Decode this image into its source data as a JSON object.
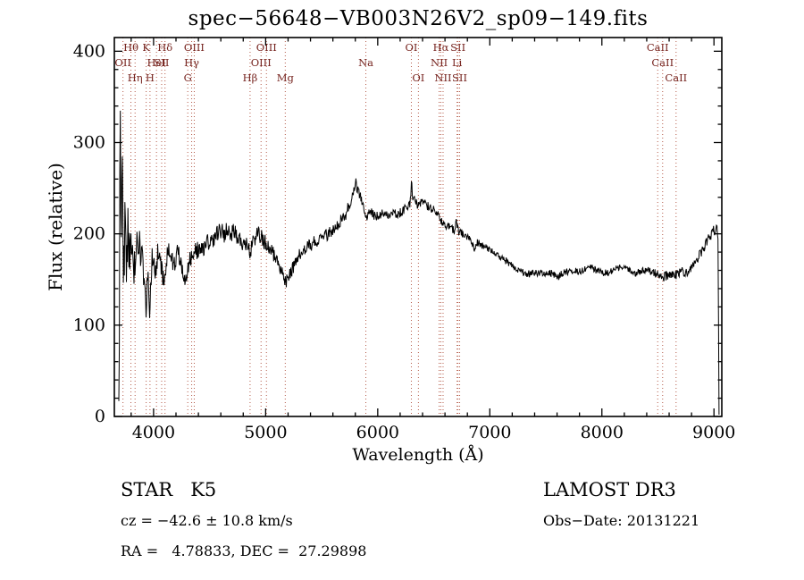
{
  "chart_data": {
    "type": "line",
    "title": "spec−56648−VB003N26V2_sp09−149.fits",
    "xlabel": "Wavelength (Å)",
    "ylabel": "Flux (relative)",
    "xlim": [
      3650,
      9070
    ],
    "ylim": [
      0,
      415
    ],
    "x_ticks": [
      4000,
      5000,
      6000,
      7000,
      8000,
      9000
    ],
    "y_ticks": [
      0,
      100,
      200,
      300,
      400
    ],
    "x_minor_step": 200,
    "y_minor_step": 20,
    "grid": false,
    "legend": "none",
    "line_color": "#000000",
    "marker_line_color": "#b45a48",
    "marker_label_color": "#76241f",
    "spectral_lines": [
      {
        "label": "OII",
        "wavelength": 3727,
        "row": 2
      },
      {
        "label": "Hθ",
        "wavelength": 3798,
        "row": 1
      },
      {
        "label": "Hη",
        "wavelength": 3835,
        "row": 3
      },
      {
        "label": "K",
        "wavelength": 3934,
        "row": 1
      },
      {
        "label": "H",
        "wavelength": 3968,
        "row": 3
      },
      {
        "label": "HeI",
        "wavelength": 4026,
        "row": 2
      },
      {
        "label": "SII",
        "wavelength": 4072,
        "row": 2
      },
      {
        "label": "Hδ",
        "wavelength": 4102,
        "row": 1
      },
      {
        "label": "G",
        "wavelength": 4305,
        "row": 3
      },
      {
        "label": "Hγ",
        "wavelength": 4340,
        "row": 2
      },
      {
        "label": "OIII",
        "wavelength": 4363,
        "row": 1
      },
      {
        "label": "Hβ",
        "wavelength": 4861,
        "row": 3
      },
      {
        "label": "OIII",
        "wavelength": 4959,
        "row": 2
      },
      {
        "label": "OIII",
        "wavelength": 5007,
        "row": 1
      },
      {
        "label": "Mg",
        "wavelength": 5175,
        "row": 3
      },
      {
        "label": "Na",
        "wavelength": 5894,
        "row": 2
      },
      {
        "label": "OI",
        "wavelength": 6300,
        "row": 1
      },
      {
        "label": "OI",
        "wavelength": 6363,
        "row": 3
      },
      {
        "label": "NII",
        "wavelength": 6548,
        "row": 2
      },
      {
        "label": "Hα",
        "wavelength": 6563,
        "row": 1
      },
      {
        "label": "NII",
        "wavelength": 6583,
        "row": 3
      },
      {
        "label": "Li",
        "wavelength": 6708,
        "row": 2
      },
      {
        "label": "SII",
        "wavelength": 6716,
        "row": 1
      },
      {
        "label": "SII",
        "wavelength": 6731,
        "row": 3
      },
      {
        "label": "CaII",
        "wavelength": 8498,
        "row": 1
      },
      {
        "label": "CaII",
        "wavelength": 8542,
        "row": 2
      },
      {
        "label": "CaII",
        "wavelength": 8662,
        "row": 3
      }
    ],
    "series": [
      {
        "name": "flux",
        "noise_seed": 20131221,
        "sample_step": 4.5,
        "anchors": [
          [
            3690,
            15,
            5
          ],
          [
            3696,
            120,
            20
          ],
          [
            3702,
            395,
            10
          ],
          [
            3708,
            210,
            40
          ],
          [
            3715,
            240,
            40
          ],
          [
            3722,
            300,
            30
          ],
          [
            3728,
            180,
            40
          ],
          [
            3736,
            150,
            40
          ],
          [
            3744,
            240,
            35
          ],
          [
            3752,
            200,
            35
          ],
          [
            3760,
            170,
            35
          ],
          [
            3770,
            215,
            30
          ],
          [
            3780,
            185,
            30
          ],
          [
            3790,
            160,
            30
          ],
          [
            3800,
            200,
            28
          ],
          [
            3810,
            175,
            28
          ],
          [
            3820,
            150,
            25
          ],
          [
            3830,
            185,
            25
          ],
          [
            3840,
            160,
            25
          ],
          [
            3850,
            190,
            22
          ],
          [
            3862,
            170,
            22
          ],
          [
            3874,
            200,
            20
          ],
          [
            3886,
            155,
            22
          ],
          [
            3898,
            180,
            20
          ],
          [
            3910,
            160,
            18
          ],
          [
            3922,
            135,
            18
          ],
          [
            3934,
            112,
            12
          ],
          [
            3946,
            160,
            18
          ],
          [
            3958,
            130,
            15
          ],
          [
            3968,
            105,
            12
          ],
          [
            3980,
            165,
            18
          ],
          [
            3995,
            180,
            15
          ],
          [
            4010,
            165,
            14
          ],
          [
            4025,
            160,
            14
          ],
          [
            4040,
            185,
            12
          ],
          [
            4055,
            170,
            12
          ],
          [
            4072,
            160,
            12
          ],
          [
            4088,
            150,
            12
          ],
          [
            4102,
            145,
            10
          ],
          [
            4118,
            175,
            12
          ],
          [
            4135,
            182,
            12
          ],
          [
            4155,
            175,
            11
          ],
          [
            4175,
            168,
            11
          ],
          [
            4200,
            172,
            10
          ],
          [
            4220,
            183,
            10
          ],
          [
            4240,
            168,
            10
          ],
          [
            4262,
            158,
            10
          ],
          [
            4285,
            150,
            10
          ],
          [
            4305,
            160,
            10
          ],
          [
            4325,
            172,
            10
          ],
          [
            4345,
            178,
            10
          ],
          [
            4365,
            185,
            10
          ],
          [
            4390,
            182,
            10
          ],
          [
            4420,
            188,
            9
          ],
          [
            4450,
            183,
            9
          ],
          [
            4480,
            192,
            9
          ],
          [
            4510,
            188,
            9
          ],
          [
            4540,
            196,
            9
          ],
          [
            4570,
            200,
            9
          ],
          [
            4600,
            204,
            9
          ],
          [
            4630,
            199,
            9
          ],
          [
            4660,
            206,
            9
          ],
          [
            4690,
            200,
            9
          ],
          [
            4720,
            203,
            9
          ],
          [
            4750,
            196,
            9
          ],
          [
            4780,
            192,
            9
          ],
          [
            4810,
            190,
            9
          ],
          [
            4840,
            186,
            9
          ],
          [
            4861,
            178,
            8
          ],
          [
            4885,
            190,
            9
          ],
          [
            4910,
            196,
            9
          ],
          [
            4935,
            200,
            9
          ],
          [
            4960,
            196,
            9
          ],
          [
            4985,
            192,
            9
          ],
          [
            5010,
            188,
            9
          ],
          [
            5040,
            183,
            8
          ],
          [
            5070,
            178,
            8
          ],
          [
            5100,
            172,
            8
          ],
          [
            5130,
            164,
            8
          ],
          [
            5160,
            153,
            7
          ],
          [
            5185,
            148,
            7
          ],
          [
            5210,
            153,
            7
          ],
          [
            5240,
            162,
            7
          ],
          [
            5270,
            170,
            7
          ],
          [
            5300,
            177,
            7
          ],
          [
            5340,
            182,
            7
          ],
          [
            5380,
            186,
            7
          ],
          [
            5420,
            190,
            7
          ],
          [
            5460,
            193,
            7
          ],
          [
            5500,
            194,
            7
          ],
          [
            5540,
            198,
            7
          ],
          [
            5580,
            203,
            7
          ],
          [
            5620,
            207,
            7
          ],
          [
            5660,
            212,
            7
          ],
          [
            5700,
            218,
            7
          ],
          [
            5730,
            226,
            7
          ],
          [
            5760,
            236,
            6
          ],
          [
            5785,
            246,
            6
          ],
          [
            5800,
            256,
            4
          ],
          [
            5806,
            265,
            3
          ],
          [
            5814,
            250,
            5
          ],
          [
            5828,
            246,
            5
          ],
          [
            5845,
            241,
            5
          ],
          [
            5862,
            234,
            5
          ],
          [
            5880,
            224,
            5
          ],
          [
            5894,
            214,
            5
          ],
          [
            5912,
            222,
            5
          ],
          [
            5935,
            225,
            5
          ],
          [
            5960,
            221,
            5
          ],
          [
            5990,
            219,
            5
          ],
          [
            6020,
            221,
            5
          ],
          [
            6050,
            223,
            5
          ],
          [
            6080,
            220,
            5
          ],
          [
            6110,
            222,
            5
          ],
          [
            6140,
            224,
            5
          ],
          [
            6170,
            221,
            5
          ],
          [
            6200,
            223,
            5
          ],
          [
            6230,
            226,
            5
          ],
          [
            6260,
            229,
            5
          ],
          [
            6285,
            232,
            5
          ],
          [
            6296,
            240,
            4
          ],
          [
            6302,
            268,
            3
          ],
          [
            6310,
            236,
            5
          ],
          [
            6330,
            238,
            5
          ],
          [
            6355,
            231,
            5
          ],
          [
            6380,
            234,
            5
          ],
          [
            6410,
            236,
            5
          ],
          [
            6440,
            231,
            5
          ],
          [
            6470,
            229,
            5
          ],
          [
            6500,
            226,
            5
          ],
          [
            6530,
            222,
            5
          ],
          [
            6563,
            216,
            5
          ],
          [
            6590,
            211,
            5
          ],
          [
            6620,
            208,
            5
          ],
          [
            6650,
            206,
            5
          ],
          [
            6680,
            204,
            5
          ],
          [
            6700,
            214,
            4
          ],
          [
            6715,
            204,
            5
          ],
          [
            6740,
            201,
            5
          ],
          [
            6770,
            199,
            5
          ],
          [
            6800,
            197,
            4
          ],
          [
            6830,
            194,
            4
          ],
          [
            6862,
            184,
            4
          ],
          [
            6880,
            191,
            4
          ],
          [
            6910,
            189,
            4
          ],
          [
            6940,
            187,
            4
          ],
          [
            6970,
            185,
            4
          ],
          [
            7000,
            183,
            4
          ],
          [
            7040,
            179,
            4
          ],
          [
            7080,
            176,
            4
          ],
          [
            7120,
            173,
            4
          ],
          [
            7160,
            169,
            4
          ],
          [
            7200,
            166,
            4
          ],
          [
            7240,
            162,
            4
          ],
          [
            7280,
            159,
            4
          ],
          [
            7320,
            157,
            4
          ],
          [
            7360,
            156,
            4
          ],
          [
            7400,
            158,
            4
          ],
          [
            7440,
            156,
            4
          ],
          [
            7480,
            157,
            4
          ],
          [
            7520,
            158,
            4
          ],
          [
            7560,
            156,
            4
          ],
          [
            7600,
            153,
            4
          ],
          [
            7640,
            156,
            4
          ],
          [
            7680,
            158,
            4
          ],
          [
            7720,
            160,
            4
          ],
          [
            7760,
            159,
            4
          ],
          [
            7800,
            158,
            4
          ],
          [
            7840,
            161,
            4
          ],
          [
            7880,
            164,
            4
          ],
          [
            7920,
            162,
            4
          ],
          [
            7960,
            159,
            4
          ],
          [
            8000,
            158,
            4
          ],
          [
            8040,
            157,
            4
          ],
          [
            8080,
            159,
            4
          ],
          [
            8120,
            161,
            4
          ],
          [
            8160,
            163,
            4
          ],
          [
            8200,
            164,
            4
          ],
          [
            8240,
            160,
            4
          ],
          [
            8280,
            157,
            4
          ],
          [
            8320,
            158,
            4
          ],
          [
            8360,
            160,
            4
          ],
          [
            8400,
            161,
            4
          ],
          [
            8440,
            159,
            4
          ],
          [
            8480,
            157,
            5
          ],
          [
            8520,
            155,
            5
          ],
          [
            8560,
            153,
            5
          ],
          [
            8600,
            156,
            5
          ],
          [
            8640,
            153,
            5
          ],
          [
            8680,
            157,
            5
          ],
          [
            8720,
            159,
            5
          ],
          [
            8760,
            157,
            5
          ],
          [
            8800,
            162,
            5
          ],
          [
            8840,
            170,
            5
          ],
          [
            8880,
            178,
            6
          ],
          [
            8920,
            186,
            6
          ],
          [
            8950,
            194,
            6
          ],
          [
            8975,
            200,
            6
          ],
          [
            8995,
            206,
            5
          ],
          [
            9010,
            200,
            5
          ],
          [
            9025,
            212,
            4
          ],
          [
            9038,
            190,
            3
          ],
          [
            9042,
            60,
            2
          ],
          [
            9045,
            2,
            0
          ]
        ]
      }
    ]
  },
  "annotations": {
    "class_label": "STAR   K5",
    "survey": "LAMOST DR3",
    "cz": "cz = −42.6 ± 10.8 km/s",
    "obs_date": "Obs−Date: 20131221",
    "ra_dec": "RA =   4.78833, DEC =  27.29898"
  }
}
